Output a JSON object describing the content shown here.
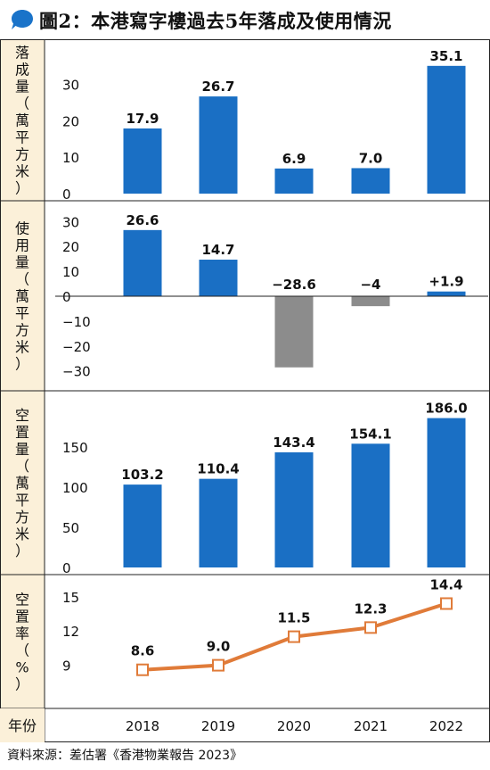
{
  "title": "圖2：本港寫字樓過去5年落成及使用情況",
  "source": "資料來源：差估署《香港物業報告 2023》",
  "colors": {
    "bar": "#1a6fc4",
    "negative_bar": "#8c8c8c",
    "line": "#e07b39",
    "label_bg": "#fbf0d9",
    "title_icon": "#1a73c9"
  },
  "x_axis_label": "年份",
  "chart_data": [
    {
      "type": "bar",
      "ylabel": "落成量（萬平方米）",
      "categories": [
        "2018",
        "2019",
        "2020",
        "2021",
        "2022"
      ],
      "values": [
        17.9,
        26.7,
        6.9,
        7.0,
        35.1
      ],
      "value_labels": [
        "17.9",
        "26.7",
        "6.9",
        "7.0",
        "35.1"
      ],
      "yticks": [
        "0",
        "10",
        "20",
        "30"
      ],
      "ylim": [
        0,
        38
      ]
    },
    {
      "type": "bar",
      "ylabel": "使用量（萬平方米）",
      "categories": [
        "2018",
        "2019",
        "2020",
        "2021",
        "2022"
      ],
      "values": [
        26.6,
        14.7,
        -28.6,
        -4,
        1.9
      ],
      "value_labels": [
        "26.6",
        "14.7",
        "−28.6",
        "−4",
        "+1.9"
      ],
      "yticks": [
        "30",
        "20",
        "10",
        "0",
        "−10",
        "−20",
        "−30"
      ],
      "ylim": [
        -33,
        33
      ]
    },
    {
      "type": "bar",
      "ylabel": "空置量（萬平方米）",
      "categories": [
        "2018",
        "2019",
        "2020",
        "2021",
        "2022"
      ],
      "values": [
        103.2,
        110.4,
        143.4,
        154.1,
        186.0
      ],
      "value_labels": [
        "103.2",
        "110.4",
        "143.4",
        "154.1",
        "186.0"
      ],
      "yticks": [
        "0",
        "50",
        "100",
        "150"
      ],
      "ylim": [
        0,
        200
      ]
    },
    {
      "type": "line",
      "ylabel": "空置率（%）",
      "categories": [
        "2018",
        "2019",
        "2020",
        "2021",
        "2022"
      ],
      "values": [
        8.6,
        9.0,
        11.5,
        12.3,
        14.4
      ],
      "value_labels": [
        "8.6",
        "9.0",
        "11.5",
        "12.3",
        "14.4"
      ],
      "yticks": [
        "9",
        "12",
        "15"
      ],
      "ylim": [
        6,
        16
      ]
    }
  ]
}
